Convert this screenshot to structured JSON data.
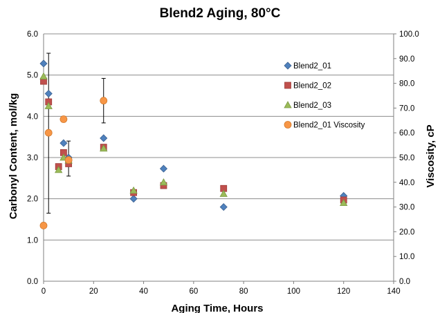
{
  "chart_data": {
    "type": "scatter",
    "title": "Blend2 Aging, 80°C",
    "xlabel": "Aging Time, Hours",
    "ylabel": "Carbonyl Content, mol/kg",
    "y2label": "Viscosity, cP",
    "xlim": [
      0,
      140
    ],
    "ylim": [
      0,
      6
    ],
    "y2lim": [
      0,
      100
    ],
    "x_ticks": [
      "0",
      "20",
      "40",
      "60",
      "80",
      "100",
      "120",
      "140"
    ],
    "y_ticks": [
      "0.0",
      "1.0",
      "2.0",
      "3.0",
      "4.0",
      "5.0",
      "6.0"
    ],
    "y2_ticks": [
      "0.0",
      "10.0",
      "20.0",
      "30.0",
      "40.0",
      "50.0",
      "60.0",
      "70.0",
      "80.0",
      "90.0",
      "100.0"
    ],
    "grid": "horizontal",
    "legend_position": "right",
    "series": [
      {
        "name": "Blend2_01",
        "marker": "diamond",
        "color": "#4f81bd",
        "axis": "left",
        "x": [
          0,
          2,
          8,
          10,
          24,
          36,
          48,
          72,
          120
        ],
        "y": [
          5.28,
          4.55,
          3.35,
          3.0,
          3.47,
          2.0,
          2.73,
          1.8,
          2.07
        ]
      },
      {
        "name": "Blend2_02",
        "marker": "square",
        "color": "#c0504d",
        "axis": "left",
        "x": [
          0,
          2,
          6,
          8,
          10,
          24,
          36,
          48,
          72,
          120
        ],
        "y": [
          4.85,
          4.35,
          2.78,
          3.12,
          2.85,
          3.25,
          2.15,
          2.32,
          2.25,
          1.97
        ]
      },
      {
        "name": "Blend2_03",
        "marker": "triangle",
        "color": "#9bbb59",
        "axis": "left",
        "x": [
          0,
          2,
          6,
          8,
          10,
          24,
          36,
          48,
          72,
          120
        ],
        "y": [
          4.97,
          4.25,
          2.7,
          3.0,
          2.93,
          3.22,
          2.2,
          2.4,
          2.12,
          1.9
        ]
      },
      {
        "name": "Blend2_01 Viscosity",
        "marker": "circle",
        "color": "#f79646",
        "axis": "right",
        "x": [
          0,
          2,
          8,
          10,
          24
        ],
        "y": [
          22.5,
          60.0,
          65.5,
          49.0,
          73.0
        ]
      }
    ],
    "error_bars": [
      {
        "series": "Blend2_02",
        "x": 2,
        "low": 1.65,
        "high": 5.53
      },
      {
        "series": "Blend2_02",
        "x": 10,
        "low": 2.55,
        "high": 3.4
      },
      {
        "series": "Blend2_01 Viscosity",
        "x": 24,
        "low": 64.0,
        "high": 82.0
      }
    ]
  }
}
